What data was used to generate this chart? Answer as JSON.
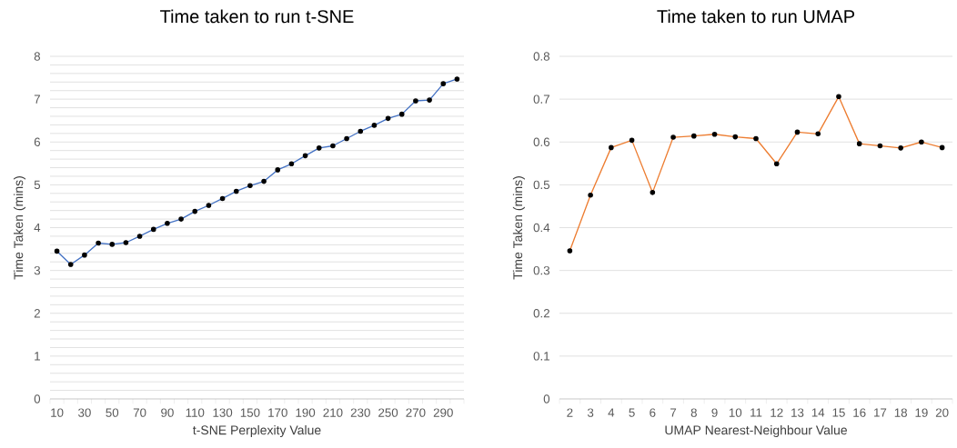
{
  "chart_data": [
    {
      "type": "line",
      "title": "Time taken to run t-SNE",
      "xlabel": "t-SNE Perplexity Value",
      "ylabel": "Time Taken (mins)",
      "categories": [
        "10",
        null,
        "30",
        null,
        "50",
        null,
        "70",
        null,
        "90",
        null,
        "110",
        null,
        "130",
        null,
        "150",
        null,
        "170",
        null,
        "190",
        null,
        "210",
        null,
        "230",
        null,
        "250",
        null,
        "270",
        null,
        "290",
        null
      ],
      "series": [
        {
          "color": "#4472c4",
          "values": [
            3.45,
            3.14,
            3.36,
            3.64,
            3.61,
            3.65,
            3.8,
            3.96,
            4.1,
            4.2,
            4.38,
            4.52,
            4.68,
            4.85,
            4.98,
            5.08,
            5.35,
            5.49,
            5.68,
            5.86,
            5.91,
            6.08,
            6.25,
            6.39,
            6.55,
            6.65,
            6.96,
            6.98,
            7.36,
            7.47
          ]
        }
      ],
      "ylim": [
        0,
        8
      ],
      "yticks": [
        0,
        {
          "value": 0.2,
          "label": null
        },
        {
          "value": 0.4,
          "label": null
        },
        {
          "value": 0.6,
          "label": null
        },
        {
          "value": 0.8,
          "label": null
        },
        1,
        {
          "value": 1.2,
          "label": null
        },
        {
          "value": 1.4,
          "label": null
        },
        {
          "value": 1.6,
          "label": null
        },
        {
          "value": 1.8,
          "label": null
        },
        2,
        {
          "value": 2.2,
          "label": null
        },
        {
          "value": 2.4,
          "label": null
        },
        {
          "value": 2.6,
          "label": null
        },
        {
          "value": 2.8,
          "label": null
        },
        3,
        {
          "value": 3.2,
          "label": null
        },
        {
          "value": 3.4,
          "label": null
        },
        {
          "value": 3.6,
          "label": null
        },
        {
          "value": 3.8,
          "label": null
        },
        4,
        {
          "value": 4.2,
          "label": null
        },
        {
          "value": 4.4,
          "label": null
        },
        {
          "value": 4.6,
          "label": null
        },
        {
          "value": 4.8,
          "label": null
        },
        5,
        {
          "value": 5.2,
          "label": null
        },
        {
          "value": 5.4,
          "label": null
        },
        {
          "value": 5.6,
          "label": null
        },
        {
          "value": 5.8,
          "label": null
        },
        6,
        {
          "value": 6.2,
          "label": null
        },
        {
          "value": 6.4,
          "label": null
        },
        {
          "value": 6.6,
          "label": null
        },
        {
          "value": 6.8,
          "label": null
        },
        7,
        {
          "value": 7.2,
          "label": null
        },
        {
          "value": 7.4,
          "label": null
        },
        {
          "value": 7.6,
          "label": null
        },
        {
          "value": 7.8,
          "label": null
        },
        8
      ],
      "grid": "y",
      "marker": "circle"
    },
    {
      "type": "line",
      "title": "Time taken to run UMAP",
      "xlabel": "UMAP Nearest-Neighbour Value",
      "ylabel": "Time Taken (mins)",
      "categories": [
        "2",
        "3",
        "4",
        "5",
        "6",
        "7",
        "8",
        "9",
        "10",
        "11",
        "12",
        "13",
        "14",
        "15",
        "16",
        "17",
        "18",
        "19",
        "20"
      ],
      "series": [
        {
          "color": "#ed7d31",
          "values": [
            0.346,
            0.476,
            0.587,
            0.604,
            0.482,
            0.611,
            0.614,
            0.618,
            0.612,
            0.608,
            0.549,
            0.623,
            0.619,
            0.706,
            0.596,
            0.591,
            0.586,
            0.6,
            0.587
          ]
        }
      ],
      "ylim": [
        0,
        0.8
      ],
      "yticks": [
        0,
        0.1,
        0.2,
        0.3,
        0.4,
        0.5,
        0.6,
        0.7,
        0.8
      ],
      "grid": "y",
      "marker": "circle"
    }
  ]
}
